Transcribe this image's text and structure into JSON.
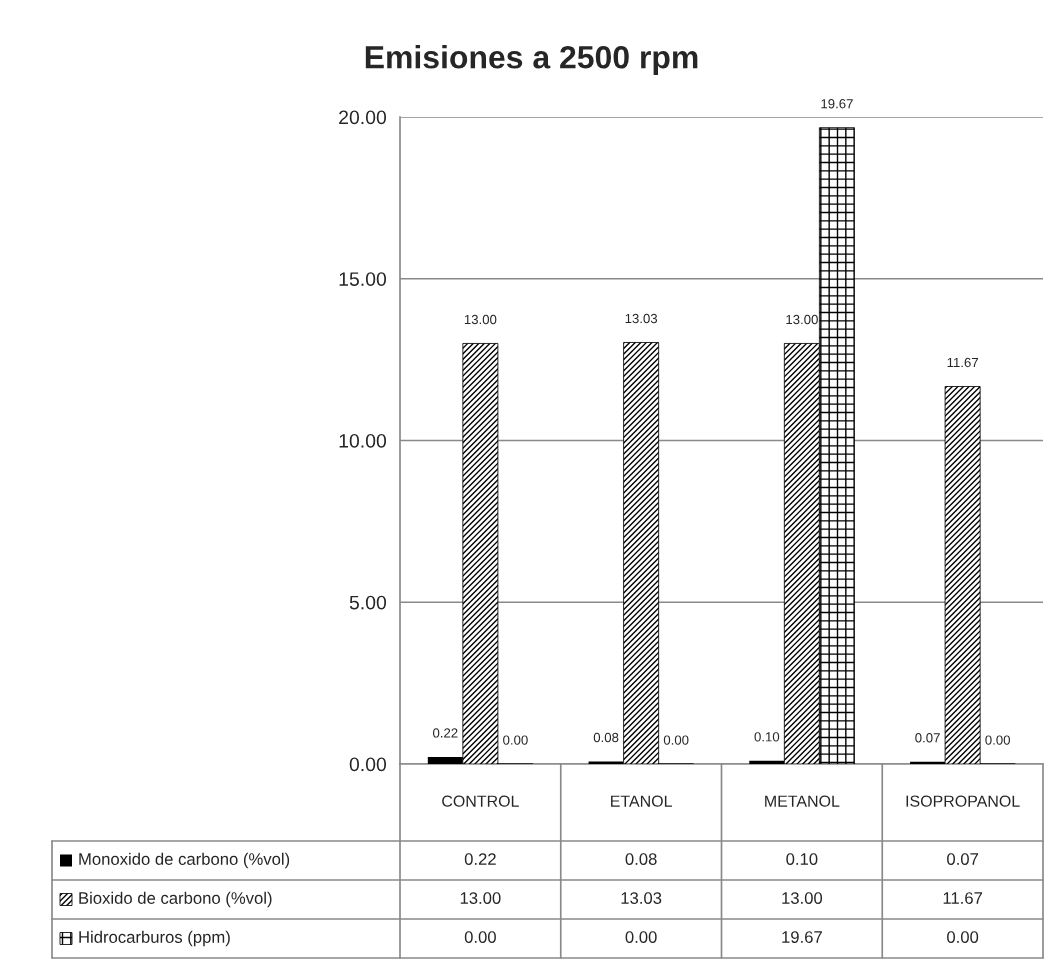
{
  "chart_data": {
    "type": "bar",
    "title": "Emisiones a 2500 rpm",
    "categories": [
      "CONTROL",
      "ETANOL",
      "METANOL",
      "ISOPROPANOL"
    ],
    "series": [
      {
        "name": "Monoxido de carbono (%vol)",
        "color": "#000000",
        "values": [
          0.22,
          0.08,
          0.1,
          0.07
        ],
        "value_labels": [
          "0.22",
          "0.08",
          "0.10",
          "0.07"
        ]
      },
      {
        "name": "Bioxido de carbono (%vol)",
        "color": "#000000",
        "values": [
          13.0,
          13.03,
          13.0,
          11.67
        ],
        "value_labels": [
          "13.00",
          "13.03",
          "13.00",
          "11.67"
        ]
      },
      {
        "name": "Hidrocarburos (ppm)",
        "color": "#000000",
        "values": [
          0.0,
          0.0,
          19.67,
          0.0
        ],
        "value_labels": [
          "0.00",
          "0.00",
          "19.67",
          "0.00"
        ]
      }
    ],
    "ylim": [
      0,
      20
    ],
    "yticks": [
      {
        "value": 0,
        "label": "0.00"
      },
      {
        "value": 5,
        "label": "5.00"
      },
      {
        "value": 10,
        "label": "10.00"
      },
      {
        "value": 15,
        "label": "15.00"
      },
      {
        "value": 20,
        "label": "20.00"
      }
    ],
    "grid": "y",
    "legend": "bottom"
  }
}
